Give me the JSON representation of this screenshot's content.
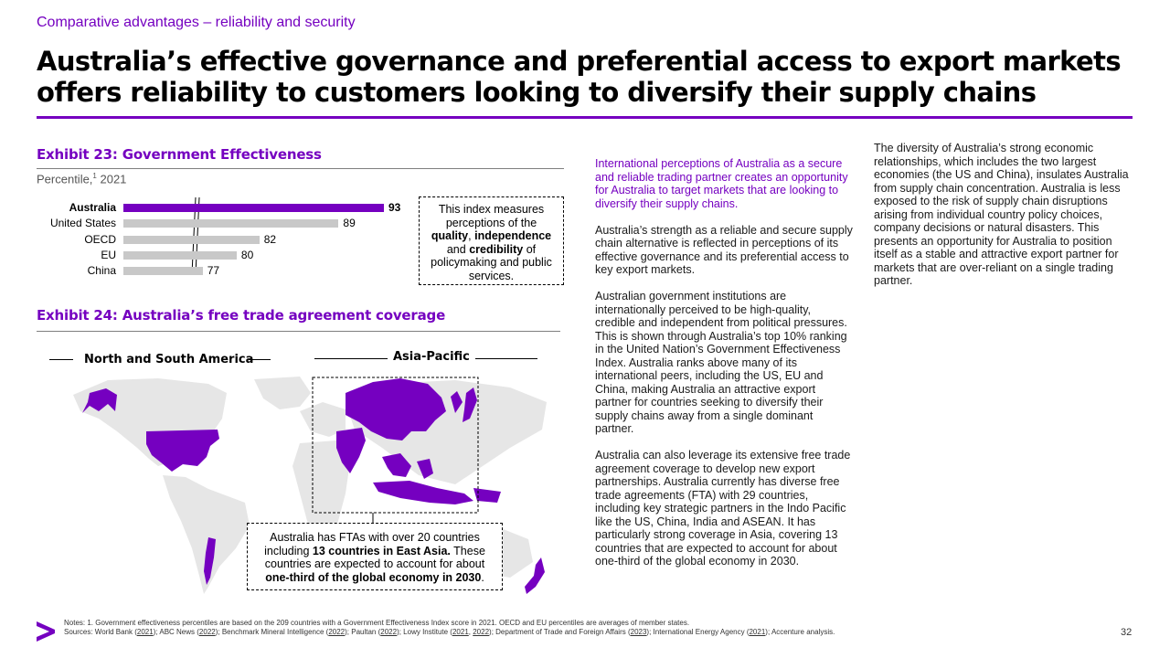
{
  "kicker": "Comparative advantages – reliability and security",
  "headline": "Australia’s effective governance and preferential access to export markets offers reliability to customers looking to diversify their supply chains",
  "colors": {
    "accent": "#7500c0",
    "bar_grey": "#c8c8c8",
    "map_land": "#e6e6e6"
  },
  "exhibit23": {
    "title": "Exhibit 23: Government Effectiveness",
    "subtitle_main": "Percentile,",
    "subtitle_sup": "1",
    "subtitle_year": " 2021",
    "callout": {
      "t1": "This index measures perceptions of the ",
      "b1": "quality",
      "t2": ", ",
      "b2": "independence",
      "t3": " and ",
      "b3": "credibility",
      "t4": " of policymaking and public services."
    }
  },
  "chart_data": {
    "type": "bar",
    "orientation": "horizontal",
    "categories": [
      "Australia",
      "United States",
      "OECD",
      "EU",
      "China"
    ],
    "values": [
      93,
      89,
      82,
      80,
      77
    ],
    "highlight": "Australia",
    "axis_break": true
  },
  "exhibit24": {
    "title": "Exhibit 24: Australia’s free trade agreement coverage",
    "legend_americas": "North and South America",
    "legend_asia": "Asia-Pacific",
    "callout": {
      "t1": "Australia has FTAs with over 20 countries including ",
      "b1": "13 countries in East Asia.",
      "t2": " These countries are expected to account for about ",
      "b2": "one-third of the global economy in 2030",
      "t3": "."
    }
  },
  "middle_text": {
    "p1": "International perceptions of Australia as a secure and reliable trading partner creates an opportunity for Australia to target markets that are looking to diversify their supply chains.",
    "p2": "Australia’s strength as a reliable and secure supply chain alternative is reflected in perceptions of its effective governance and its preferential access to key export markets.",
    "p3": "Australian government institutions are internationally perceived to be high-quality, credible and independent from political pressures. This is shown through Australia’s top 10% ranking in the United Nation’s Government Effectiveness Index. Australia ranks above many of its international peers, including the US, EU and China, making Australia an attractive export partner for countries seeking to diversify their supply chains away from a single dominant partner.",
    "p4": "Australia can also leverage its extensive free trade agreement coverage to develop new export partnerships. Australia currently has diverse free trade agreements (FTA) with 29 countries, including key strategic partners in the Indo Pacific like the US, China, India and ASEAN. It has particularly strong coverage in Asia, covering 13 countries that are expected to account for about one-third of the global economy in 2030."
  },
  "right_text": {
    "p1": "The diversity of Australia’s strong economic relationships, which includes the two largest economies (the US and China), insulates Australia from supply chain concentration. Australia is less exposed to the risk of supply chain disruptions arising from individual country policy choices, company decisions or natural disasters. This presents an opportunity for Australia to position itself as a stable and attractive export partner for markets that are over-reliant on a single trading partner."
  },
  "footer": {
    "notes": "Notes: 1. Government effectiveness percentiles are based on the 209 countries with a Government Effectiveness Index score in 2021. OECD and EU percentiles are averages of member states.",
    "sources_prefix": "Sources: World Bank (",
    "y_wb": "2021",
    "s_abc": "); ABC News (",
    "y_abc": "2022",
    "s_bmi": "); Benchmark Mineral Intelligence (",
    "y_bmi": "2022",
    "s_paul": "); Paultan (",
    "y_paul": "2022",
    "s_lowy": "); Lowy Institute (",
    "y_lowy1": "2021",
    "s_comma": ", ",
    "y_lowy2": "2022",
    "s_dfat": "); Department of Trade and Foreign Affairs (",
    "y_dfat": "2023",
    "s_iea": "); International Energy Agency (",
    "y_iea": "2021",
    "s_end": "); Accenture analysis.",
    "page_number": "32",
    "logo": "accenture-chevron"
  }
}
